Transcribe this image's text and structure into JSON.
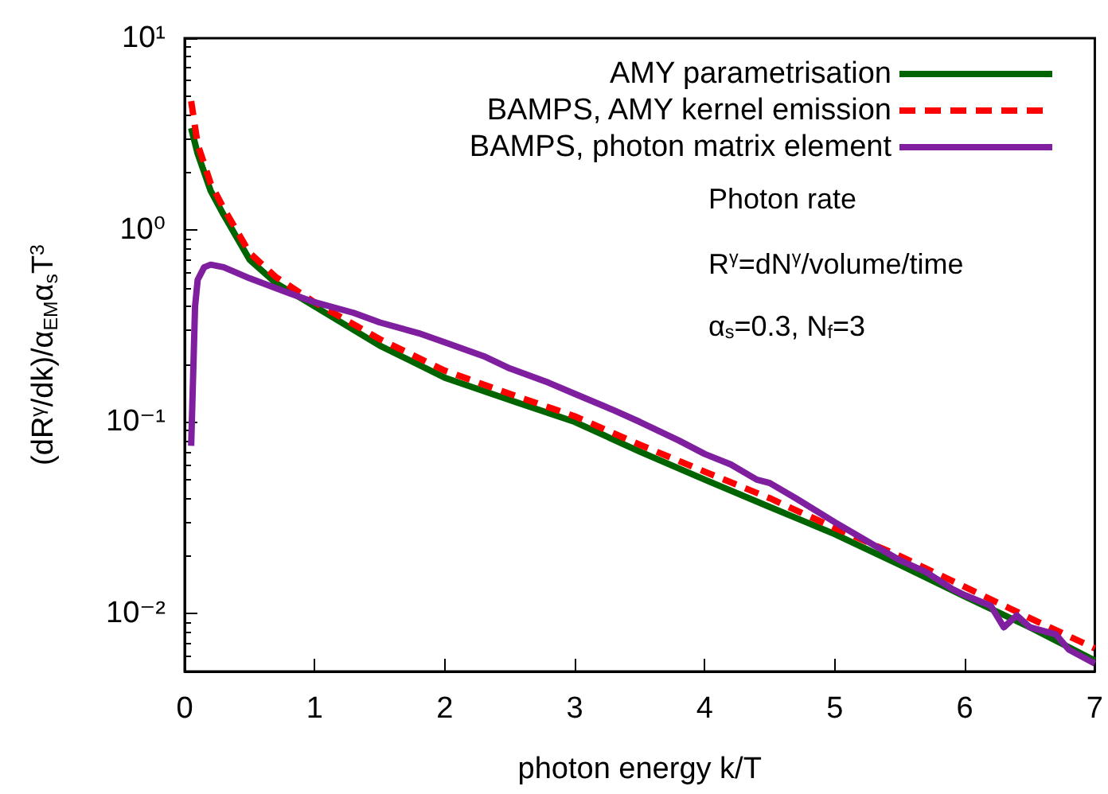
{
  "chart_data": {
    "type": "line",
    "xlabel": "photon energy k/T",
    "ylabel": "(dR$^{γ}$/dk)/α$_{EM}$α$_{s}$T$^{3}$",
    "log": "y",
    "xlim": [
      0,
      7
    ],
    "ylim": [
      0.005,
      10
    ],
    "xticks": [
      0,
      1,
      2,
      3,
      4,
      5,
      6,
      7
    ],
    "yticks": [
      {
        "value": 0.01,
        "label": "10⁻²"
      },
      {
        "value": 0.1,
        "label": "10⁻¹"
      },
      {
        "value": 1,
        "label": "10⁰"
      },
      {
        "value": 10,
        "label": "10¹"
      }
    ],
    "grid": false,
    "legend": "top right",
    "marker": "none",
    "annotations": [
      "Photon rate",
      "R$^{γ}$=dN$^{γ}$/volume/time",
      "α$_{s}$=0.3, N$_{f}$=3"
    ],
    "series": [
      {
        "name": "AMY parametrisation",
        "color": "#006400",
        "line_style": "solid",
        "x": [
          0.05,
          0.1,
          0.2,
          0.3,
          0.5,
          0.7,
          1,
          1.5,
          2,
          2.5,
          3,
          3.5,
          4,
          4.5,
          5,
          5.5,
          6,
          6.5,
          7
        ],
        "values": [
          3.4,
          2.5,
          1.6,
          1.2,
          0.7,
          0.53,
          0.4,
          0.25,
          0.17,
          0.13,
          0.1,
          0.07,
          0.05,
          0.036,
          0.026,
          0.018,
          0.0123,
          0.0085,
          0.0057
        ]
      },
      {
        "name": "BAMPS, AMY kernel emission",
        "color": "#ff0000",
        "line_style": "dashed",
        "x": [
          0.05,
          0.1,
          0.2,
          0.3,
          0.5,
          0.7,
          1,
          1.5,
          2,
          2.5,
          3,
          3.5,
          4,
          4.5,
          5,
          5.5,
          6,
          6.5,
          7
        ],
        "values": [
          4.7,
          2.8,
          1.75,
          1.3,
          0.76,
          0.57,
          0.42,
          0.27,
          0.185,
          0.14,
          0.107,
          0.076,
          0.055,
          0.04,
          0.028,
          0.02,
          0.0138,
          0.0095,
          0.0066
        ]
      },
      {
        "name": "BAMPS, photon matrix element",
        "color": "#7f1f9f",
        "line_style": "solid",
        "x": [
          0.05,
          0.08,
          0.1,
          0.15,
          0.2,
          0.3,
          0.5,
          0.8,
          1,
          1.3,
          1.5,
          1.8,
          2,
          2.3,
          2.5,
          2.8,
          3,
          3.3,
          3.5,
          3.8,
          4,
          4.2,
          4.4,
          4.5,
          4.7,
          5,
          5.2,
          5.5,
          5.7,
          5.9,
          6,
          6.2,
          6.3,
          6.4,
          6.5,
          6.7,
          6.8,
          7
        ],
        "values": [
          0.075,
          0.4,
          0.55,
          0.64,
          0.66,
          0.64,
          0.56,
          0.47,
          0.42,
          0.37,
          0.33,
          0.29,
          0.26,
          0.22,
          0.19,
          0.16,
          0.14,
          0.115,
          0.1,
          0.08,
          0.068,
          0.06,
          0.05,
          0.048,
          0.04,
          0.03,
          0.025,
          0.019,
          0.0165,
          0.0135,
          0.0125,
          0.011,
          0.0085,
          0.0098,
          0.0085,
          0.0078,
          0.0065,
          0.0055
        ]
      }
    ]
  }
}
